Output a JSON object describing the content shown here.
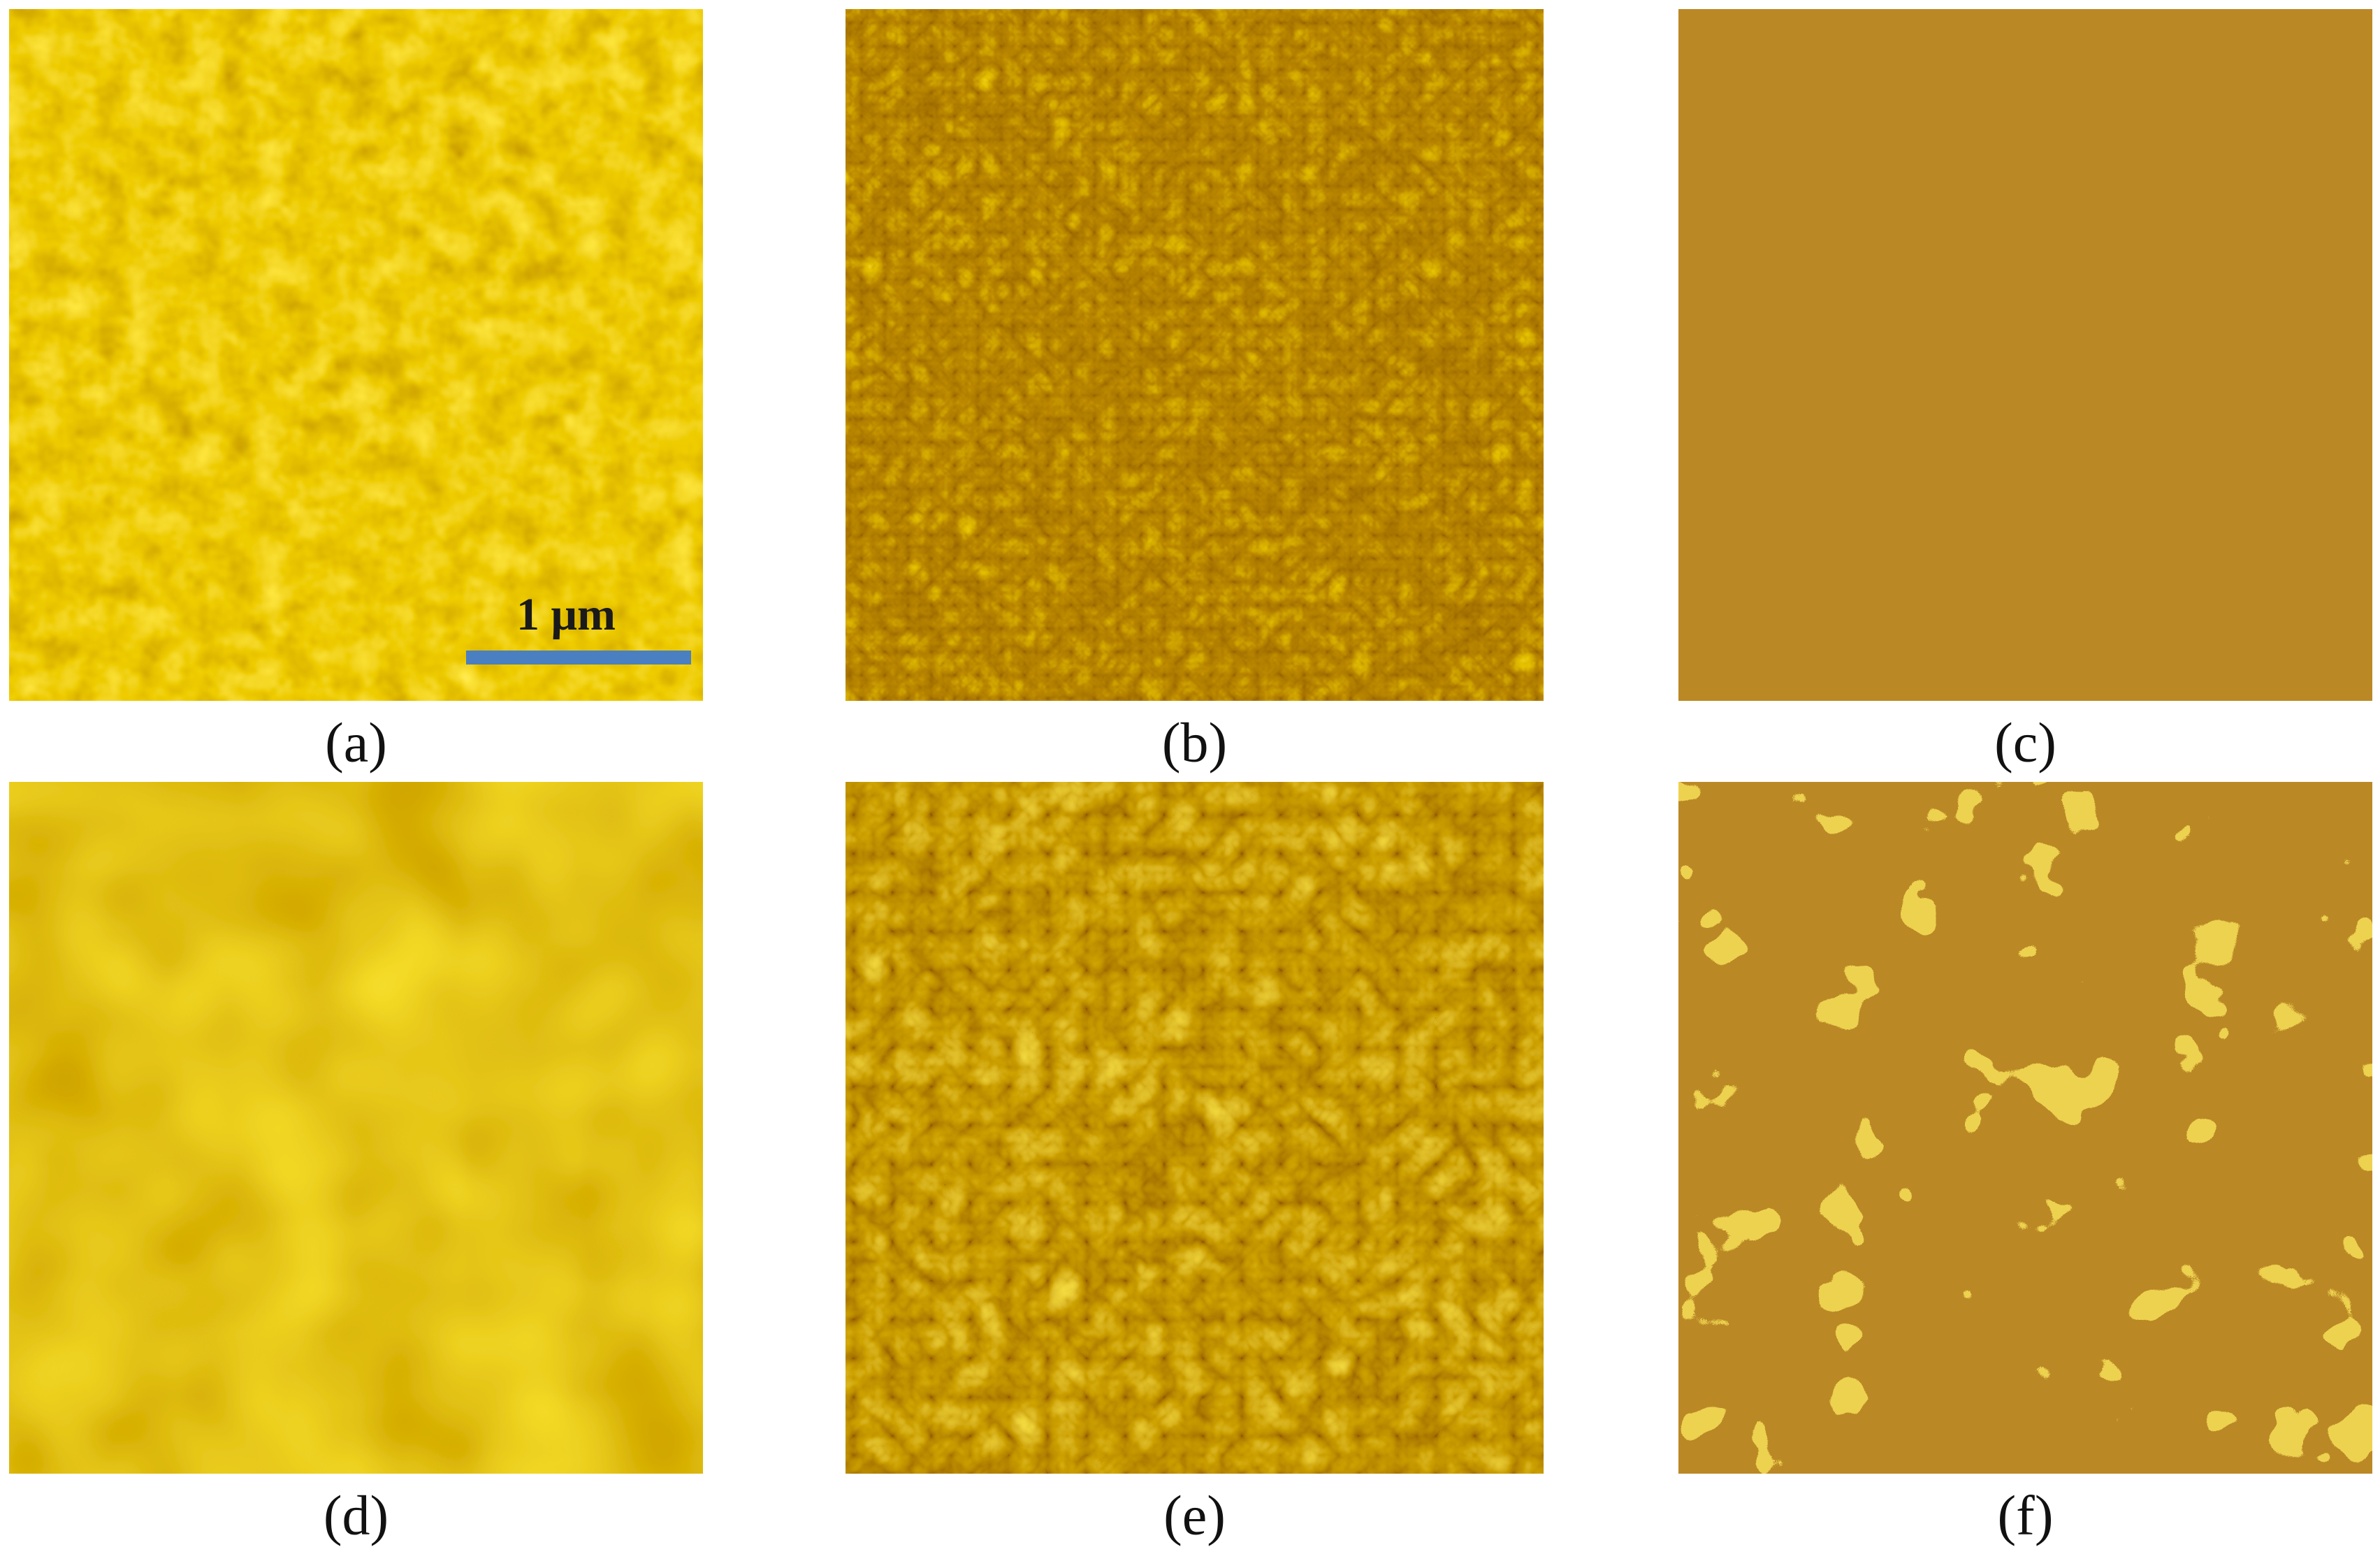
{
  "panels": [
    {
      "label": "(a)",
      "scale_bar": "1 μm"
    },
    {
      "label": "(b)"
    },
    {
      "label": "(c)"
    },
    {
      "label": "(d)"
    },
    {
      "label": "(e)"
    },
    {
      "label": "(f)"
    }
  ]
}
